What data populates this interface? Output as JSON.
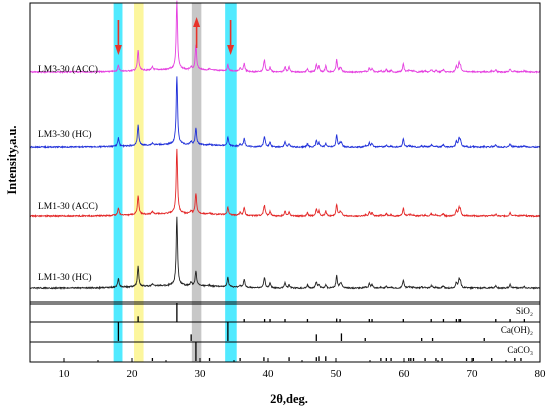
{
  "chart_data": {
    "type": "line",
    "xlabel": "2θ,deg.",
    "ylabel": "Intensity,a.u.",
    "xlim": [
      5,
      80
    ],
    "x_ticks": [
      10,
      20,
      30,
      40,
      50,
      60,
      70,
      80
    ],
    "highlight_bands": [
      {
        "range": [
          17.3,
          18.6
        ],
        "color": "#33e6ff"
      },
      {
        "range": [
          20.3,
          21.7
        ],
        "color": "#fbf58c"
      },
      {
        "range": [
          28.8,
          30.2
        ],
        "color": "#bdbdbd"
      },
      {
        "range": [
          33.7,
          35.4
        ],
        "color": "#33e6ff"
      }
    ],
    "arrows": [
      {
        "x": 18.0,
        "direction": "down",
        "color": "#e8332a"
      },
      {
        "x": 29.5,
        "direction": "up",
        "color": "#e8332a"
      },
      {
        "x": 34.5,
        "direction": "down",
        "color": "#e8332a"
      }
    ],
    "series": [
      {
        "name": "LM3-30 (ACC)",
        "color": "#e53fe0",
        "baseline": 0.0,
        "quartz": 1.0,
        "portlandite": 0.35,
        "calcite": 1.2
      },
      {
        "name": "LM3-30 (HC)",
        "color": "#1f2fd9",
        "baseline": 0.0,
        "quartz": 1.0,
        "portlandite": 0.5,
        "calcite": 0.8
      },
      {
        "name": "LM1-30 (ACC)",
        "color": "#e32626",
        "baseline": 0.0,
        "quartz": 0.95,
        "portlandite": 0.45,
        "calcite": 1.0
      },
      {
        "name": "LM1-30 (HC)",
        "color": "#222222",
        "baseline": 0.0,
        "quartz": 1.0,
        "portlandite": 0.55,
        "calcite": 0.7
      }
    ],
    "reference_patterns": [
      {
        "name": "SiO₂",
        "peaks": [
          [
            20.9,
            0.3
          ],
          [
            26.6,
            1.0
          ],
          [
            36.5,
            0.12
          ],
          [
            39.5,
            0.12
          ],
          [
            40.3,
            0.07
          ],
          [
            42.5,
            0.08
          ],
          [
            45.8,
            0.05
          ],
          [
            50.1,
            0.18
          ],
          [
            50.6,
            0.05
          ],
          [
            54.9,
            0.06
          ],
          [
            55.3,
            0.05
          ],
          [
            59.9,
            0.12
          ],
          [
            64.0,
            0.03
          ],
          [
            65.8,
            0.03
          ],
          [
            67.7,
            0.08
          ],
          [
            68.1,
            0.12
          ],
          [
            68.3,
            0.08
          ],
          [
            73.5,
            0.03
          ],
          [
            75.6,
            0.05
          ],
          [
            77.7,
            0.02
          ]
        ]
      },
      {
        "name": "Ca(OH)₂",
        "peaks": [
          [
            18.0,
            1.0
          ],
          [
            28.7,
            0.35
          ],
          [
            34.1,
            1.0
          ],
          [
            47.1,
            0.35
          ],
          [
            50.8,
            0.4
          ],
          [
            54.3,
            0.15
          ],
          [
            62.6,
            0.12
          ],
          [
            64.2,
            0.1
          ],
          [
            71.8,
            0.06
          ]
        ]
      },
      {
        "name": "CaCO₃",
        "peaks": [
          [
            23.0,
            0.12
          ],
          [
            29.4,
            1.0
          ],
          [
            31.4,
            0.05
          ],
          [
            35.9,
            0.14
          ],
          [
            39.4,
            0.2
          ],
          [
            43.1,
            0.2
          ],
          [
            47.1,
            0.2
          ],
          [
            47.5,
            0.25
          ],
          [
            48.5,
            0.25
          ],
          [
            56.6,
            0.06
          ],
          [
            57.4,
            0.12
          ],
          [
            58.1,
            0.06
          ],
          [
            60.7,
            0.07
          ],
          [
            61.0,
            0.05
          ],
          [
            61.4,
            0.05
          ],
          [
            63.1,
            0.04
          ],
          [
            64.7,
            0.06
          ],
          [
            65.6,
            0.04
          ],
          [
            69.2,
            0.03
          ],
          [
            70.2,
            0.03
          ],
          [
            72.9,
            0.04
          ],
          [
            76.3,
            0.04
          ],
          [
            77.2,
            0.02
          ]
        ]
      }
    ]
  }
}
